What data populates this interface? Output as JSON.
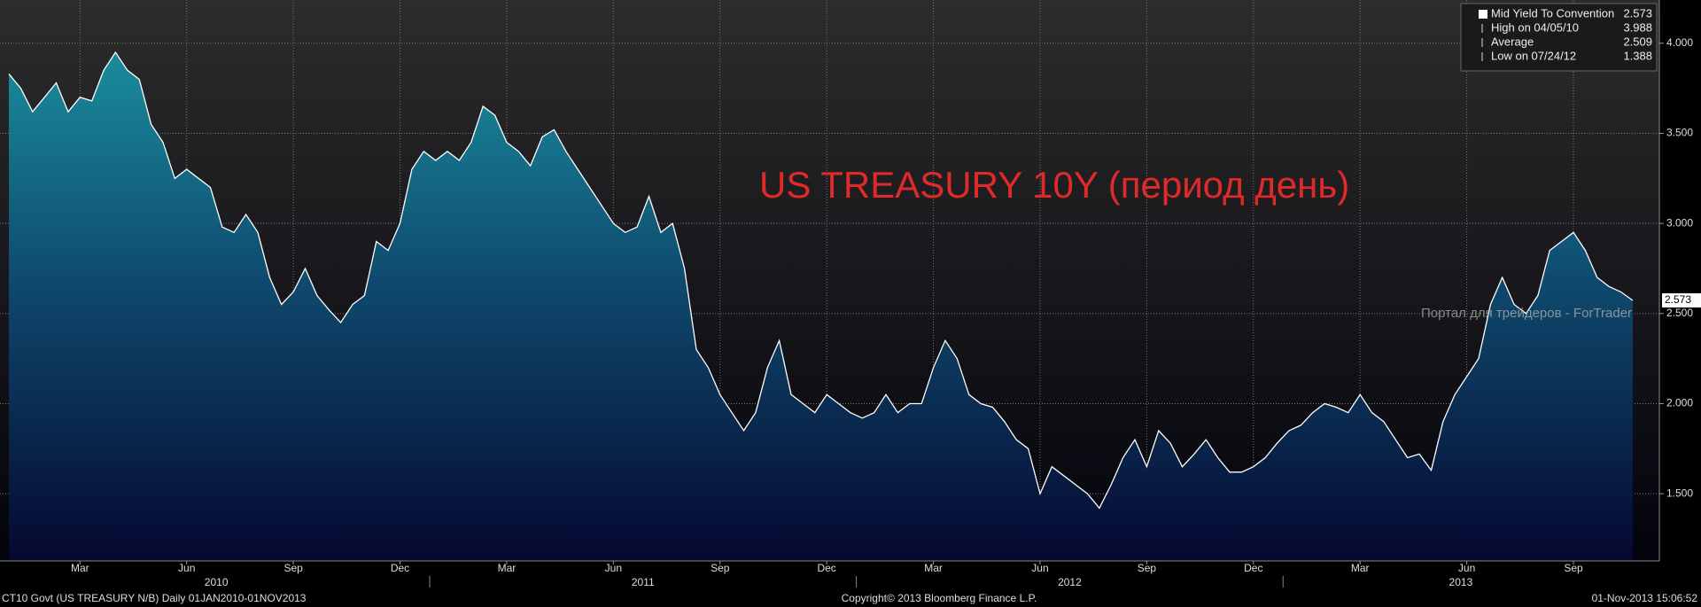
{
  "chart_data": {
    "type": "area",
    "annotation": "US TREASURY 10Y (период день)",
    "watermark": "Портал для трейдеров - ForTrader",
    "footer_left": "CT10 Govt (US TREASURY N/B)  Daily 01JAN2010-01NOV2013",
    "footer_center": "Copyright© 2013 Bloomberg Finance L.P.",
    "footer_right": "01-Nov-2013 15:06:52",
    "legend": [
      {
        "label": "Mid Yield To Convention",
        "value": 2.573
      },
      {
        "label": "High on 04/05/10",
        "value": 3.988
      },
      {
        "label": "Average",
        "value": 2.509
      },
      {
        "label": "Low on 07/24/12",
        "value": 1.388
      }
    ],
    "years": [
      "2010",
      "2011",
      "2012",
      "2013"
    ],
    "categories": [
      null,
      null,
      null,
      null,
      null,
      null,
      "Mar",
      null,
      null,
      null,
      null,
      null,
      null,
      null,
      null,
      "Jun",
      null,
      null,
      null,
      null,
      null,
      null,
      null,
      null,
      "Sep",
      null,
      null,
      null,
      null,
      null,
      null,
      null,
      null,
      "Dec",
      null,
      null,
      null,
      null,
      null,
      null,
      null,
      null,
      "Mar",
      null,
      null,
      null,
      null,
      null,
      null,
      null,
      null,
      "Jun",
      null,
      null,
      null,
      null,
      null,
      null,
      null,
      null,
      "Sep",
      null,
      null,
      null,
      null,
      null,
      null,
      null,
      null,
      "Dec",
      null,
      null,
      null,
      null,
      null,
      null,
      null,
      null,
      "Mar",
      null,
      null,
      null,
      null,
      null,
      null,
      null,
      null,
      "Jun",
      null,
      null,
      null,
      null,
      null,
      null,
      null,
      null,
      "Sep",
      null,
      null,
      null,
      null,
      null,
      null,
      null,
      null,
      "Dec",
      null,
      null,
      null,
      null,
      null,
      null,
      null,
      null,
      "Mar",
      null,
      null,
      null,
      null,
      null,
      null,
      null,
      null,
      "Jun",
      null,
      null,
      null,
      null,
      null,
      null,
      null,
      null,
      "Sep",
      null,
      null,
      null,
      null,
      null
    ],
    "series": [
      {
        "name": "Mid Yield To Convention",
        "color": "#ffffff",
        "values": [
          3.83,
          3.75,
          3.62,
          3.7,
          3.78,
          3.62,
          3.7,
          3.68,
          3.85,
          3.95,
          3.85,
          3.8,
          3.55,
          3.45,
          3.25,
          3.3,
          3.25,
          3.2,
          2.98,
          2.95,
          3.05,
          2.95,
          2.7,
          2.55,
          2.62,
          2.75,
          2.6,
          2.52,
          2.45,
          2.55,
          2.6,
          2.9,
          2.85,
          3.0,
          3.3,
          3.4,
          3.35,
          3.4,
          3.35,
          3.45,
          3.65,
          3.6,
          3.45,
          3.4,
          3.32,
          3.48,
          3.52,
          3.4,
          3.3,
          3.2,
          3.1,
          3.0,
          2.95,
          2.98,
          3.15,
          2.95,
          3.0,
          2.75,
          2.3,
          2.2,
          2.05,
          1.95,
          1.85,
          1.95,
          2.2,
          2.35,
          2.05,
          2.0,
          1.95,
          2.05,
          2.0,
          1.95,
          1.92,
          1.95,
          2.05,
          1.95,
          2.0,
          2.0,
          2.2,
          2.35,
          2.25,
          2.05,
          2.0,
          1.98,
          1.9,
          1.8,
          1.75,
          1.5,
          1.65,
          1.6,
          1.55,
          1.5,
          1.42,
          1.55,
          1.7,
          1.8,
          1.65,
          1.85,
          1.78,
          1.65,
          1.72,
          1.8,
          1.7,
          1.62,
          1.62,
          1.65,
          1.7,
          1.78,
          1.85,
          1.88,
          1.95,
          2.0,
          1.98,
          1.95,
          2.05,
          1.95,
          1.9,
          1.8,
          1.7,
          1.72,
          1.63,
          1.9,
          2.05,
          2.15,
          2.25,
          2.55,
          2.7,
          2.55,
          2.5,
          2.6,
          2.85,
          2.9,
          2.95,
          2.85,
          2.7,
          2.65,
          2.62,
          2.573
        ]
      }
    ],
    "ylim": [
      1.127,
      4.24
    ],
    "yticks": [
      {
        "value": 1.5,
        "label": "1.500"
      },
      {
        "value": 2,
        "label": "2.000"
      },
      {
        "value": 2.5,
        "label": "2.500"
      },
      {
        "value": 3,
        "label": "3.000"
      },
      {
        "value": 3.5,
        "label": "3.500"
      },
      {
        "value": 4,
        "label": "4.000"
      }
    ],
    "grid": true,
    "legend_position": "upper right"
  }
}
